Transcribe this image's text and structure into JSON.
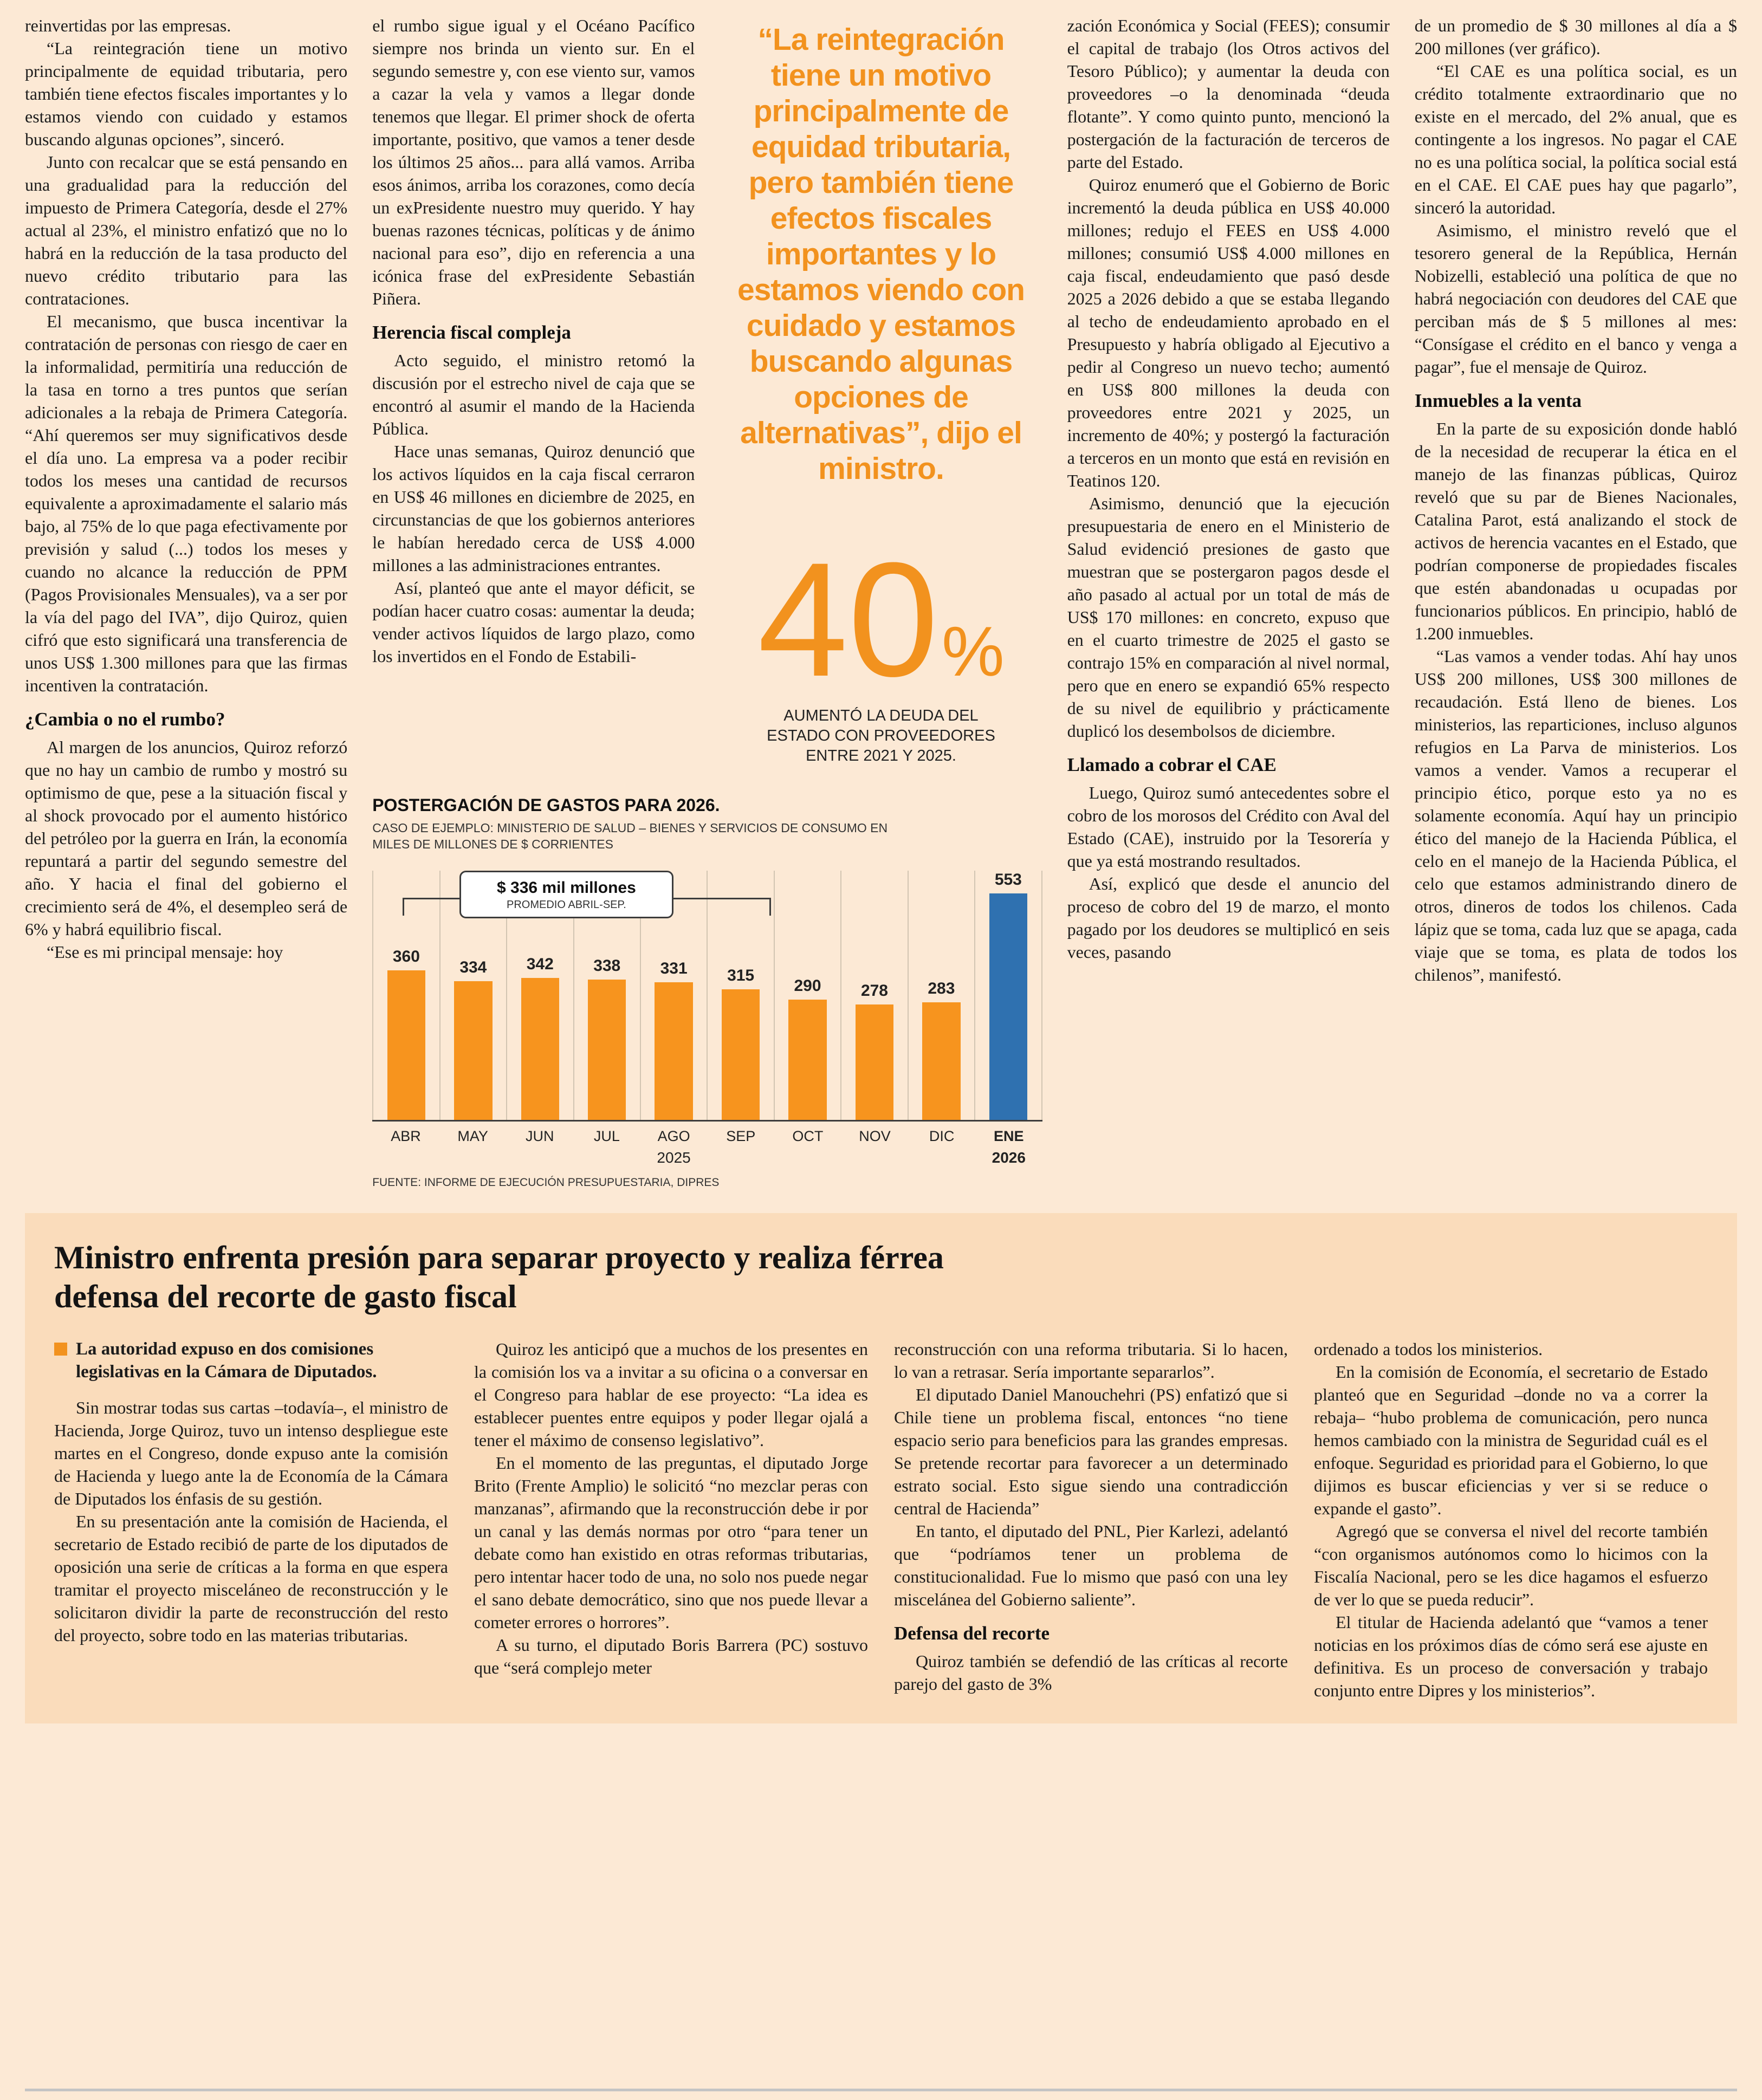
{
  "page": {
    "background": "#fce9d5",
    "box_background": "#fadcbb",
    "accent_orange": "#f2921e",
    "bar_orange": "#f7941e",
    "bar_blue": "#2f71b0",
    "text_color": "#1c1c1c"
  },
  "top": {
    "col1": {
      "paras": [
        "reinvertidas por las empresas.",
        "“La reintegración tiene un motivo principalmente de equidad tributaria, pero también tiene efectos fiscales importantes y lo estamos viendo con cuidado y estamos buscando algunas opciones”, sinceró.",
        "Junto con recalcar que se está pensando en una gradualidad para la reducción del impuesto de Primera Categoría, desde el 27% actual al 23%, el ministro enfatizó que no lo habrá en la reducción de la tasa producto del nuevo crédito tributario para las contrataciones.",
        "El mecanismo, que busca incentivar la contratación de personas con riesgo de caer en la informalidad, permitiría una reducción de la tasa en torno a tres puntos que serían adicionales a la rebaja de Primera Categoría. “Ahí queremos ser muy significativos desde el día uno. La empresa va a poder recibir todos los meses una cantidad de recursos equivalente a aproximadamente el salario más bajo, al 75% de lo que paga efectivamente por previsión y salud (...) todos los meses y cuando no alcance la reducción de PPM (Pagos Provisionales Mensuales), va a ser por la vía del pago del IVA”, dijo Quiroz, quien cifró que esto significará una transferencia de unos US$ 1.300 millones para que las firmas incentiven la contratación."
      ],
      "subhead": "¿Cambia o no el rumbo?",
      "paras2": [
        "Al margen de los anuncios, Quiroz reforzó que no hay un cambio de rumbo y mostró su optimismo de que, pese a la situación fiscal y al shock provocado por el aumento histórico del petróleo por la guerra en Irán, la economía repuntará a partir del segundo semestre del año. Y hacia el final del gobierno el crecimiento será de 4%, el desempleo será de 6% y habrá equilibrio fiscal.",
        "“Ese es mi principal mensaje: hoy"
      ]
    },
    "col2": {
      "paras": [
        "el rumbo sigue igual y el Océano Pacífico siempre nos brinda un viento sur. En el segundo semestre y, con ese viento sur, vamos a cazar la vela y vamos a llegar donde tenemos que llegar. El primer shock de oferta importante, positivo, que vamos a tener desde los últimos 25 años... para allá vamos. Arriba esos ánimos, arriba los corazones, como decía un exPresidente nuestro muy querido. Y hay buenas razones técnicas, políticas y de ánimo nacional para eso”, dijo en referencia a una icónica frase del exPresidente Sebastián Piñera."
      ],
      "subhead": "Herencia fiscal compleja",
      "paras2": [
        "Acto seguido, el ministro retomó la discusión por el estrecho nivel de caja que se encontró al asumir el mando de la Hacienda Pública.",
        "Hace unas semanas, Quiroz denunció que los activos líquidos en la caja fiscal cerraron en US$ 46 millones en diciembre de 2025, en circunstancias de que los gobiernos anteriores le habían heredado cerca de US$ 4.000 millones a las administraciones entrantes.",
        "Así, planteó que ante el mayor déficit, se podían hacer cuatro cosas: aumentar la deuda; vender activos líquidos de largo plazo, como los invertidos en el Fondo de Estabili-"
      ]
    },
    "quote": {
      "text": "“La reintegración tiene un motivo principalmente de equidad tributaria, pero también tiene efectos fiscales importantes y lo estamos viendo con cuidado y estamos buscando algunas opciones de alternativas”, dijo el ministro."
    },
    "stat": {
      "number": "40",
      "percent": "%",
      "caption": "AUMENTÓ LA DEUDA DEL ESTADO CON PROVEEDORES ENTRE 2021 Y 2025."
    },
    "col4": {
      "paras": [
        "zación Económica y Social (FEES); consumir el capital de trabajo (los Otros activos del Tesoro Público); y aumentar la deuda con proveedores –o la denominada “deuda flotante”. Y como quinto punto, mencionó la postergación de la facturación de terceros de parte del Estado.",
        "Quiroz enumeró que el Gobierno de Boric incrementó la deuda pública en US$ 40.000 millones; redujo el FEES en US$ 4.000 millones; consumió US$ 4.000 millones en caja fiscal, endeudamiento que pasó desde 2025 a 2026 debido a que se estaba llegando al techo de endeudamiento aprobado en el Presupuesto y habría obligado al Ejecutivo a pedir al Congreso un nuevo techo; aumentó en US$ 800 millones la deuda con proveedores entre 2021 y 2025, un incremento de 40%; y postergó la facturación a terceros en un monto que está en revisión en Teatinos 120.",
        "Asimismo, denunció que la ejecución presupuestaria de enero en el Ministerio de Salud evidenció presiones de gasto que muestran que se postergaron pagos desde el año pasado al actual por un total de más de US$ 170 millones: en concreto, expuso que en el cuarto trimestre de 2025 el gasto se contrajo 15% en comparación al nivel normal, pero que en enero se expandió 65% respecto de su nivel de equilibrio y prácticamente duplicó los desembolsos de diciembre."
      ],
      "subhead": "Llamado a cobrar el CAE",
      "paras2": [
        "Luego, Quiroz sumó antecedentes sobre el cobro de los morosos del Crédito con Aval del Estado (CAE), instruido por la Tesorería y que ya está mostrando resultados.",
        "Así, explicó que desde el anuncio del proceso de cobro del 19 de marzo, el monto pagado por los deudores se multiplicó en seis veces, pasando"
      ]
    },
    "col5": {
      "paras": [
        "de un promedio de $ 30 millones al día a $ 200 millones (ver gráfico).",
        "“El CAE es una política social, es un crédito totalmente extraordinario que no existe en el mercado, del 2% anual, que es contingente a los ingresos. No pagar el CAE no es una política social, la política social está en el CAE. El CAE pues hay que pagarlo”, sinceró la autoridad.",
        "Asimismo, el ministro reveló que el tesorero general de la República, Hernán Nobizelli, estableció una política de que no habrá negociación con deudores del CAE que perciban más de $ 5 millones al mes: “Consígase el crédito en el banco y venga a pagar”, fue el mensaje de Quiroz."
      ],
      "subhead": "Inmuebles a la venta",
      "paras2": [
        "En la parte de su exposición donde habló de la necesidad de recuperar la ética en el manejo de las finanzas públicas, Quiroz reveló que su par de Bienes Nacionales, Catalina Parot, está analizando el stock de activos de herencia vacantes en el Estado, que podrían componerse de propiedades fiscales que estén abandonadas u ocupadas por funcionarios públicos. En principio, habló de 1.200 inmuebles.",
        "“Las vamos a vender todas. Ahí hay unos US$ 200 millones, US$ 300 millones de recaudación. Está lleno de bienes. Los ministerios, las reparticiones, incluso algunos refugios en La Parva de ministerios. Los vamos a vender. Vamos a recuperar el principio ético, porque esto ya no es solamente economía. Aquí hay un principio ético del manejo de la Hacienda Pública, el celo en el manejo de la Hacienda Pública, el celo que estamos administrando dinero de otros, dineros de todos los chilenos. Cada lápiz que se toma, cada luz que se apaga, cada viaje que se toma, es plata de todos los chilenos”, manifestó."
      ]
    }
  },
  "chart_data": {
    "type": "bar",
    "title": "POSTERGACIÓN DE GASTOS PARA 2026.",
    "subtitle": "CASO DE EJEMPLO: MINISTERIO DE SALUD – BIENES Y SERVICIOS DE CONSUMO EN MILES DE MILLONES DE $ CORRIENTES",
    "categories": [
      "ABR",
      "MAY",
      "JUN",
      "JUL",
      "AGO",
      "SEP",
      "OCT",
      "NOV",
      "DIC",
      "ENE"
    ],
    "values": [
      360,
      334,
      342,
      338,
      331,
      315,
      290,
      278,
      283,
      553
    ],
    "ylim": [
      0,
      600
    ],
    "bar_color": "#f7941e",
    "highlight_index": 9,
    "highlight_color": "#2f71b0",
    "grid": "vertical",
    "legend": "none",
    "annotation": {
      "title": "$ 336 mil millones",
      "subtitle": "PROMEDIO ABRIL-SEP."
    },
    "year_groups": [
      {
        "label": "2025",
        "count": 9
      },
      {
        "label": "2026",
        "count": 1
      }
    ],
    "source": "FUENTE: INFORME DE EJECUCIÓN PRESUPUESTARIA, DIPRES"
  },
  "box": {
    "title": "Ministro enfrenta presión para separar proyecto y realiza férrea defensa del recorte de gasto fiscal",
    "lead": "La autoridad expuso en dos comisiones legislativas en la Cámara de Diputados.",
    "col1": {
      "paras": [
        "Sin mostrar todas sus cartas –todavía–, el ministro de Hacienda, Jorge Quiroz, tuvo un intenso despliegue este martes en el Congreso, donde expuso ante la comisión de Hacienda y luego ante la de Economía de la Cámara de Diputados los énfasis de su gestión.",
        "En su presentación ante la comisión de Hacienda, el secretario de Estado recibió de parte de los diputados de oposición una serie de críticas a la forma en que espera tramitar el proyecto misceláneo de reconstrucción y le solicitaron dividir la parte de reconstrucción del resto del proyecto, sobre todo en las materias tributarias."
      ]
    },
    "col2": {
      "paras": [
        "Quiroz les anticipó que a muchos de los presentes en la comisión los va a invitar a su oficina o a conversar en el Congreso para hablar de ese proyecto: “La idea es establecer puentes entre equipos y poder llegar ojalá a tener el máximo de consenso legislativo”.",
        "En el momento de las preguntas, el diputado Jorge Brito (Frente Amplio) le solicitó “no mezclar peras con manzanas”, afirmando que la reconstrucción debe ir por un canal y las demás normas por otro “para tener un debate como han existido en otras reformas tributarias, pero intentar hacer todo de una, no solo nos puede negar el sano debate democrático, sino que nos puede llevar a cometer errores o horrores”.",
        "A su turno, el diputado Boris Barrera (PC) sostuvo que “será complejo meter"
      ]
    },
    "col3": {
      "paras": [
        "reconstrucción con una reforma tributaria. Si lo hacen, lo van a retrasar. Sería importante separarlos”.",
        "El diputado Daniel Manouchehri (PS) enfatizó que si Chile tiene un problema fiscal, entonces “no tiene espacio serio para beneficios para las grandes empresas. Se pretende recortar para favorecer a un determinado estrato social. Esto sigue siendo una contradicción central de Hacienda”",
        "En tanto, el diputado del PNL, Pier Karlezi, adelantó que “podríamos tener un problema de constitucionalidad. Fue lo mismo que pasó con una ley miscelánea del Gobierno saliente”."
      ],
      "subhead": "Defensa del recorte",
      "paras2": [
        "Quiroz también se defendió de las críticas al recorte parejo del gasto de 3%"
      ]
    },
    "col4": {
      "paras": [
        "ordenado a todos los ministerios.",
        "En la comisión de Economía, el secretario de Estado planteó que en Seguridad –donde no va a correr la rebaja– “hubo problema de comunicación, pero nunca hemos cambiado con la ministra de Seguridad cuál es el enfoque. Seguridad es prioridad para el Gobierno, lo que dijimos es buscar eficiencias y ver si se reduce o expande el gasto”.",
        "Agregó que se conversa el nivel del recorte también “con organismos autónomos como lo hicimos con la Fiscalía Nacional, pero se les dice hagamos el esfuerzo de ver lo que se pueda reducir”.",
        "El titular de Hacienda adelantó que “vamos a tener noticias en los próximos días de cómo será ese ajuste en definitiva. Es un proceso de conversación y trabajo conjunto entre Dipres y los ministerios”."
      ]
    }
  }
}
